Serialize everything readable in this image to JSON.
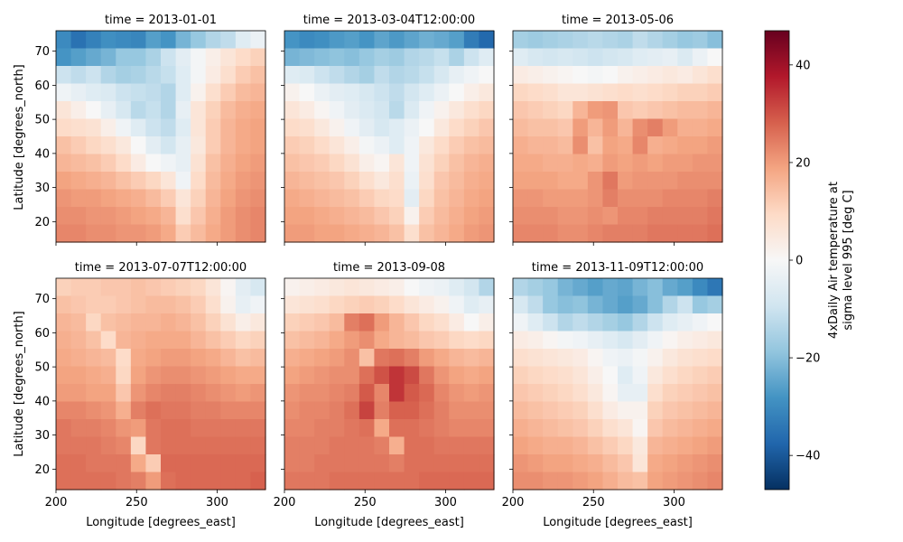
{
  "chart_data": {
    "type": "heatmap",
    "panels": [
      {
        "title": "time = 2013-01-01",
        "grid": [
          [
            -30,
            -35,
            -32,
            -29,
            -30,
            -31,
            -26,
            -28,
            -22,
            -18,
            -14,
            -12,
            -6,
            -3
          ],
          [
            -28,
            -26,
            -24,
            -22,
            -18,
            -18,
            -15,
            -10,
            -5,
            -1,
            3,
            6,
            9,
            11
          ],
          [
            -10,
            -12,
            -10,
            -14,
            -16,
            -15,
            -13,
            -11,
            -6,
            -1,
            4,
            8,
            12,
            14
          ],
          [
            -2,
            -4,
            -6,
            -7,
            -10,
            -11,
            -12,
            -14,
            -6,
            2,
            8,
            12,
            15,
            16
          ],
          [
            6,
            3,
            0,
            -4,
            -8,
            -13,
            -11,
            -14,
            -4,
            6,
            11,
            15,
            17,
            18
          ],
          [
            9,
            8,
            7,
            3,
            -2,
            -6,
            -10,
            -12,
            -6,
            6,
            12,
            16,
            18,
            19
          ],
          [
            14,
            12,
            10,
            8,
            5,
            0,
            -5,
            -9,
            -4,
            5,
            12,
            16,
            18,
            19
          ],
          [
            16,
            15,
            14,
            12,
            9,
            4,
            0,
            -2,
            -4,
            7,
            14,
            17,
            19,
            20
          ],
          [
            19,
            18,
            17,
            16,
            14,
            12,
            10,
            6,
            -2,
            9,
            15,
            18,
            20,
            21
          ],
          [
            21,
            20,
            20,
            19,
            18,
            17,
            15,
            12,
            6,
            11,
            16,
            19,
            21,
            22
          ],
          [
            22,
            22,
            21,
            21,
            20,
            19,
            18,
            16,
            8,
            13,
            17,
            20,
            22,
            23
          ],
          [
            23,
            23,
            22,
            22,
            21,
            21,
            20,
            18,
            12,
            15,
            18,
            20,
            22,
            23
          ]
        ]
      },
      {
        "title": "time = 2013-03-04T12:00:00",
        "grid": [
          [
            -28,
            -30,
            -29,
            -27,
            -26,
            -28,
            -25,
            -27,
            -25,
            -23,
            -24,
            -26,
            -33,
            -37
          ],
          [
            -22,
            -21,
            -20,
            -19,
            -20,
            -18,
            -16,
            -17,
            -14,
            -13,
            -11,
            -15,
            -10,
            -6
          ],
          [
            -6,
            -7,
            -10,
            -12,
            -14,
            -16,
            -12,
            -14,
            -13,
            -11,
            -8,
            -4,
            -2,
            0
          ],
          [
            2,
            0,
            -3,
            -5,
            -6,
            -8,
            -10,
            -12,
            -9,
            -6,
            -3,
            0,
            3,
            5
          ],
          [
            6,
            4,
            1,
            -2,
            -5,
            -7,
            -9,
            -13,
            -7,
            -2,
            2,
            5,
            8,
            10
          ],
          [
            9,
            8,
            5,
            2,
            -2,
            -5,
            -8,
            -6,
            -3,
            0,
            5,
            9,
            11,
            13
          ],
          [
            12,
            11,
            9,
            6,
            3,
            -1,
            -3,
            -6,
            -2,
            5,
            9,
            12,
            14,
            15
          ],
          [
            14,
            13,
            12,
            10,
            7,
            3,
            1,
            6,
            -2,
            7,
            11,
            14,
            16,
            17
          ],
          [
            16,
            15,
            14,
            13,
            11,
            8,
            5,
            8,
            -3,
            8,
            13,
            15,
            17,
            18
          ],
          [
            18,
            17,
            16,
            15,
            14,
            12,
            10,
            9,
            -5,
            10,
            14,
            16,
            18,
            19
          ],
          [
            19,
            19,
            18,
            17,
            16,
            15,
            13,
            11,
            2,
            12,
            15,
            17,
            19,
            20
          ],
          [
            20,
            20,
            19,
            19,
            18,
            17,
            16,
            14,
            8,
            14,
            16,
            18,
            20,
            21
          ]
        ]
      },
      {
        "title": "time = 2013-05-06",
        "grid": [
          [
            -16,
            -17,
            -16,
            -15,
            -14,
            -13,
            -14,
            -15,
            -12,
            -14,
            -16,
            -18,
            -17,
            -20
          ],
          [
            -6,
            -8,
            -9,
            -8,
            -9,
            -10,
            -9,
            -8,
            -6,
            -5,
            -4,
            -7,
            -3,
            0
          ],
          [
            4,
            3,
            2,
            1,
            0,
            -1,
            0,
            2,
            3,
            4,
            5,
            4,
            6,
            8
          ],
          [
            10,
            9,
            8,
            6,
            6,
            7,
            8,
            9,
            8,
            9,
            10,
            11,
            11,
            12
          ],
          [
            13,
            12,
            11,
            10,
            16,
            20,
            21,
            13,
            12,
            13,
            14,
            15,
            15,
            16
          ],
          [
            15,
            14,
            14,
            13,
            20,
            16,
            20,
            16,
            22,
            24,
            20,
            17,
            17,
            18
          ],
          [
            17,
            16,
            16,
            15,
            22,
            14,
            19,
            18,
            23,
            17,
            18,
            19,
            19,
            20
          ],
          [
            18,
            18,
            17,
            17,
            18,
            17,
            20,
            19,
            20,
            19,
            20,
            20,
            21,
            21
          ],
          [
            19,
            19,
            19,
            18,
            18,
            21,
            25,
            20,
            21,
            21,
            21,
            22,
            22,
            22
          ],
          [
            21,
            21,
            20,
            20,
            20,
            21,
            24,
            22,
            22,
            22,
            23,
            23,
            23,
            24
          ],
          [
            22,
            22,
            22,
            21,
            21,
            22,
            21,
            23,
            23,
            24,
            24,
            24,
            24,
            25
          ],
          [
            23,
            23,
            23,
            22,
            22,
            23,
            24,
            24,
            24,
            25,
            25,
            25,
            25,
            26
          ]
        ]
      },
      {
        "title": "time = 2013-07-07T12:00:00",
        "grid": [
          [
            11,
            12,
            12,
            13,
            13,
            14,
            13,
            12,
            11,
            10,
            6,
            1,
            -5,
            -8
          ],
          [
            14,
            13,
            12,
            12,
            13,
            14,
            15,
            15,
            14,
            12,
            8,
            2,
            -4,
            -2
          ],
          [
            16,
            15,
            10,
            14,
            15,
            16,
            16,
            17,
            16,
            14,
            11,
            7,
            3,
            5
          ],
          [
            17,
            16,
            14,
            9,
            16,
            17,
            18,
            18,
            18,
            16,
            14,
            12,
            10,
            11
          ],
          [
            18,
            17,
            16,
            15,
            9,
            18,
            19,
            20,
            20,
            19,
            18,
            16,
            14,
            15
          ],
          [
            19,
            19,
            18,
            17,
            10,
            19,
            21,
            22,
            22,
            21,
            20,
            19,
            18,
            18
          ],
          [
            20,
            20,
            19,
            19,
            13,
            21,
            23,
            24,
            24,
            23,
            22,
            21,
            20,
            21
          ],
          [
            23,
            23,
            22,
            21,
            17,
            24,
            26,
            25,
            25,
            24,
            24,
            23,
            23,
            23
          ],
          [
            25,
            24,
            24,
            23,
            21,
            20,
            25,
            26,
            26,
            25,
            25,
            25,
            25,
            25
          ],
          [
            25,
            25,
            25,
            24,
            23,
            10,
            25,
            26,
            26,
            26,
            26,
            26,
            26,
            26
          ],
          [
            26,
            26,
            25,
            25,
            25,
            18,
            12,
            27,
            27,
            27,
            27,
            27,
            27,
            27
          ],
          [
            26,
            26,
            26,
            26,
            25,
            24,
            20,
            26,
            27,
            27,
            27,
            27,
            27,
            28
          ]
        ]
      },
      {
        "title": "time = 2013-09-08",
        "grid": [
          [
            2,
            3,
            4,
            5,
            6,
            5,
            4,
            3,
            0,
            -2,
            -3,
            -6,
            -9,
            -14
          ],
          [
            6,
            7,
            8,
            10,
            11,
            12,
            11,
            9,
            6,
            4,
            2,
            -2,
            -6,
            -4
          ],
          [
            11,
            12,
            13,
            15,
            24,
            26,
            20,
            16,
            13,
            10,
            8,
            4,
            0,
            3
          ],
          [
            14,
            15,
            16,
            18,
            20,
            22,
            18,
            16,
            15,
            13,
            12,
            10,
            9,
            10
          ],
          [
            17,
            18,
            19,
            20,
            22,
            14,
            25,
            26,
            24,
            20,
            18,
            16,
            15,
            16
          ],
          [
            19,
            20,
            21,
            22,
            22,
            26,
            30,
            34,
            31,
            25,
            21,
            19,
            18,
            19
          ],
          [
            21,
            22,
            22,
            23,
            24,
            29,
            23,
            34,
            29,
            27,
            23,
            21,
            20,
            21
          ],
          [
            22,
            23,
            23,
            24,
            26,
            32,
            24,
            28,
            28,
            26,
            24,
            22,
            22,
            22
          ],
          [
            23,
            23,
            24,
            24,
            25,
            26,
            18,
            26,
            26,
            25,
            24,
            23,
            23,
            23
          ],
          [
            24,
            24,
            24,
            25,
            25,
            25,
            24,
            17,
            26,
            26,
            25,
            25,
            25,
            25
          ],
          [
            24,
            24,
            25,
            25,
            25,
            25,
            25,
            24,
            26,
            26,
            26,
            26,
            26,
            26
          ],
          [
            25,
            25,
            25,
            26,
            26,
            26,
            26,
            26,
            26,
            27,
            27,
            27,
            27,
            27
          ]
        ]
      },
      {
        "title": "time = 2013-11-09T12:00:00",
        "grid": [
          [
            -14,
            -16,
            -18,
            -22,
            -24,
            -26,
            -24,
            -25,
            -22,
            -20,
            -24,
            -26,
            -30,
            -34
          ],
          [
            -8,
            -12,
            -18,
            -20,
            -19,
            -22,
            -24,
            -26,
            -24,
            -20,
            -14,
            -10,
            -18,
            -16
          ],
          [
            -2,
            -6,
            -10,
            -14,
            -12,
            -14,
            -16,
            -18,
            -14,
            -10,
            -6,
            -4,
            -2,
            0
          ],
          [
            4,
            3,
            1,
            -1,
            -2,
            -4,
            -6,
            -8,
            -5,
            -2,
            1,
            3,
            4,
            5
          ],
          [
            8,
            7,
            6,
            5,
            4,
            1,
            -2,
            -3,
            -1,
            2,
            5,
            7,
            8,
            9
          ],
          [
            11,
            10,
            9,
            8,
            6,
            3,
            0,
            -6,
            -2,
            5,
            8,
            10,
            11,
            12
          ],
          [
            13,
            12,
            11,
            10,
            8,
            5,
            1,
            -4,
            -4,
            8,
            11,
            12,
            13,
            14
          ],
          [
            15,
            14,
            13,
            12,
            11,
            8,
            4,
            2,
            2,
            11,
            13,
            14,
            15,
            16
          ],
          [
            17,
            16,
            15,
            14,
            13,
            11,
            8,
            6,
            1,
            13,
            15,
            16,
            17,
            18
          ],
          [
            19,
            18,
            17,
            17,
            16,
            14,
            12,
            10,
            5,
            16,
            17,
            18,
            19,
            20
          ],
          [
            21,
            20,
            19,
            19,
            18,
            17,
            15,
            13,
            6,
            18,
            19,
            20,
            21,
            22
          ],
          [
            22,
            22,
            21,
            21,
            20,
            19,
            17,
            15,
            14,
            19,
            20,
            21,
            22,
            23
          ]
        ]
      }
    ],
    "xlabel": "Longitude [degrees_east]",
    "ylabel": "Latitude [degrees_north]",
    "xlim": [
      200,
      330
    ],
    "ylim": [
      14,
      76
    ],
    "xticks": [
      200,
      250,
      300
    ],
    "yticks": [
      20,
      30,
      40,
      50,
      60,
      70
    ],
    "colorbar": {
      "label_line1": "4xDaily Air temperature at",
      "label_line2": "sigma level 995 [deg C]",
      "range": [
        -47,
        47
      ],
      "ticks": [
        -40,
        -20,
        0,
        20,
        40
      ],
      "tick_labels": [
        "−40",
        "−20",
        "0",
        "20",
        "40"
      ],
      "colormap": "RdBu_r",
      "colors": [
        "#053061",
        "#2166ac",
        "#4393c3",
        "#92c5de",
        "#d1e5f0",
        "#f7f7f7",
        "#fddbc7",
        "#f4a582",
        "#d6604d",
        "#b2182b",
        "#67001f"
      ]
    }
  }
}
